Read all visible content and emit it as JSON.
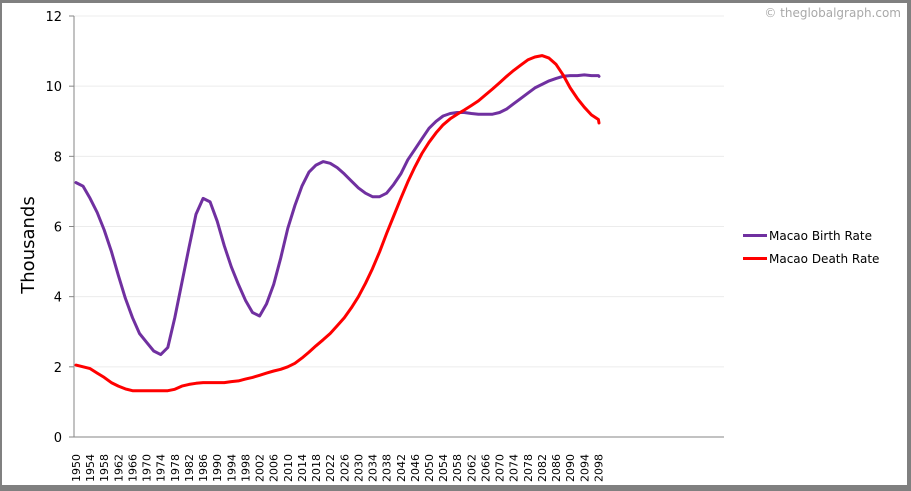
{
  "watermark": "© theglobalgraph.com",
  "colors": {
    "birth": "#7030a0",
    "death": "#ff0000",
    "grid": "#ececec",
    "axis": "#868686",
    "frame": "#808080"
  },
  "legend": {
    "items": [
      {
        "label": "Macao Birth Rate",
        "color": "#7030a0"
      },
      {
        "label": "Macao Death Rate",
        "color": "#ff0000"
      }
    ]
  },
  "chart_data": {
    "type": "line",
    "title": "",
    "xlabel": "",
    "ylabel": "Thousands",
    "ylim": [
      0,
      12
    ],
    "yticks": [
      0,
      2,
      4,
      6,
      8,
      10,
      12
    ],
    "grid": true,
    "legend_position": "right",
    "x_tick_labels": [
      "1950",
      "1954",
      "1958",
      "1962",
      "1966",
      "1970",
      "1974",
      "1978",
      "1982",
      "1986",
      "1990",
      "1994",
      "1998",
      "2002",
      "2006",
      "2010",
      "2014",
      "2018",
      "2022",
      "2026",
      "2030",
      "2034",
      "2038",
      "2042",
      "2046",
      "2050",
      "2054",
      "2058",
      "2062",
      "2066",
      "2070",
      "2074",
      "2078",
      "2082",
      "2086",
      "2090",
      "2094",
      "2098"
    ],
    "series": [
      {
        "name": "Macao Birth Rate",
        "color": "#7030a0",
        "points": [
          [
            1950,
            7.25
          ],
          [
            1952,
            7.15
          ],
          [
            1954,
            6.8
          ],
          [
            1956,
            6.4
          ],
          [
            1958,
            5.9
          ],
          [
            1960,
            5.3
          ],
          [
            1962,
            4.6
          ],
          [
            1964,
            3.95
          ],
          [
            1966,
            3.4
          ],
          [
            1968,
            2.95
          ],
          [
            1970,
            2.7
          ],
          [
            1972,
            2.45
          ],
          [
            1974,
            2.35
          ],
          [
            1976,
            2.55
          ],
          [
            1978,
            3.4
          ],
          [
            1980,
            4.4
          ],
          [
            1982,
            5.4
          ],
          [
            1984,
            6.35
          ],
          [
            1986,
            6.8
          ],
          [
            1988,
            6.7
          ],
          [
            1990,
            6.15
          ],
          [
            1992,
            5.45
          ],
          [
            1994,
            4.85
          ],
          [
            1996,
            4.35
          ],
          [
            1998,
            3.9
          ],
          [
            2000,
            3.55
          ],
          [
            2002,
            3.45
          ],
          [
            2004,
            3.8
          ],
          [
            2006,
            4.35
          ],
          [
            2008,
            5.1
          ],
          [
            2010,
            5.95
          ],
          [
            2012,
            6.6
          ],
          [
            2014,
            7.15
          ],
          [
            2016,
            7.55
          ],
          [
            2018,
            7.75
          ],
          [
            2020,
            7.85
          ],
          [
            2022,
            7.8
          ],
          [
            2024,
            7.68
          ],
          [
            2026,
            7.5
          ],
          [
            2028,
            7.3
          ],
          [
            2030,
            7.1
          ],
          [
            2032,
            6.95
          ],
          [
            2034,
            6.85
          ],
          [
            2036,
            6.85
          ],
          [
            2038,
            6.95
          ],
          [
            2040,
            7.2
          ],
          [
            2042,
            7.5
          ],
          [
            2044,
            7.9
          ],
          [
            2046,
            8.2
          ],
          [
            2048,
            8.5
          ],
          [
            2050,
            8.8
          ],
          [
            2052,
            9.0
          ],
          [
            2054,
            9.15
          ],
          [
            2056,
            9.22
          ],
          [
            2058,
            9.25
          ],
          [
            2060,
            9.25
          ],
          [
            2062,
            9.22
          ],
          [
            2064,
            9.2
          ],
          [
            2066,
            9.2
          ],
          [
            2068,
            9.2
          ],
          [
            2070,
            9.25
          ],
          [
            2072,
            9.35
          ],
          [
            2074,
            9.5
          ],
          [
            2076,
            9.65
          ],
          [
            2078,
            9.8
          ],
          [
            2080,
            9.95
          ],
          [
            2082,
            10.05
          ],
          [
            2084,
            10.15
          ],
          [
            2086,
            10.22
          ],
          [
            2088,
            10.28
          ],
          [
            2090,
            10.3
          ],
          [
            2092,
            10.3
          ],
          [
            2094,
            10.32
          ],
          [
            2096,
            10.3
          ],
          [
            2098,
            10.3
          ],
          [
            2100,
            10.28
          ]
        ]
      },
      {
        "name": "Macao Death Rate",
        "color": "#ff0000",
        "points": [
          [
            1950,
            2.05
          ],
          [
            1952,
            2.0
          ],
          [
            1954,
            1.95
          ],
          [
            1956,
            1.82
          ],
          [
            1958,
            1.7
          ],
          [
            1960,
            1.55
          ],
          [
            1962,
            1.45
          ],
          [
            1964,
            1.37
          ],
          [
            1966,
            1.32
          ],
          [
            1968,
            1.32
          ],
          [
            1970,
            1.32
          ],
          [
            1972,
            1.32
          ],
          [
            1974,
            1.32
          ],
          [
            1976,
            1.32
          ],
          [
            1978,
            1.36
          ],
          [
            1980,
            1.45
          ],
          [
            1982,
            1.5
          ],
          [
            1984,
            1.53
          ],
          [
            1986,
            1.55
          ],
          [
            1988,
            1.55
          ],
          [
            1990,
            1.55
          ],
          [
            1992,
            1.55
          ],
          [
            1994,
            1.58
          ],
          [
            1996,
            1.6
          ],
          [
            1998,
            1.65
          ],
          [
            2000,
            1.7
          ],
          [
            2002,
            1.76
          ],
          [
            2004,
            1.82
          ],
          [
            2006,
            1.88
          ],
          [
            2008,
            1.93
          ],
          [
            2010,
            2.0
          ],
          [
            2012,
            2.1
          ],
          [
            2014,
            2.25
          ],
          [
            2016,
            2.42
          ],
          [
            2018,
            2.6
          ],
          [
            2020,
            2.77
          ],
          [
            2022,
            2.95
          ],
          [
            2024,
            3.17
          ],
          [
            2026,
            3.4
          ],
          [
            2028,
            3.68
          ],
          [
            2030,
            4.0
          ],
          [
            2032,
            4.38
          ],
          [
            2034,
            4.8
          ],
          [
            2036,
            5.28
          ],
          [
            2038,
            5.8
          ],
          [
            2040,
            6.3
          ],
          [
            2042,
            6.8
          ],
          [
            2044,
            7.27
          ],
          [
            2046,
            7.7
          ],
          [
            2048,
            8.08
          ],
          [
            2050,
            8.4
          ],
          [
            2052,
            8.67
          ],
          [
            2054,
            8.9
          ],
          [
            2056,
            9.07
          ],
          [
            2058,
            9.2
          ],
          [
            2060,
            9.32
          ],
          [
            2062,
            9.45
          ],
          [
            2064,
            9.58
          ],
          [
            2066,
            9.75
          ],
          [
            2068,
            9.92
          ],
          [
            2070,
            10.1
          ],
          [
            2072,
            10.28
          ],
          [
            2074,
            10.45
          ],
          [
            2076,
            10.6
          ],
          [
            2078,
            10.75
          ],
          [
            2080,
            10.83
          ],
          [
            2082,
            10.87
          ],
          [
            2084,
            10.8
          ],
          [
            2086,
            10.62
          ],
          [
            2088,
            10.32
          ],
          [
            2090,
            9.95
          ],
          [
            2092,
            9.65
          ],
          [
            2094,
            9.4
          ],
          [
            2096,
            9.18
          ],
          [
            2098,
            9.05
          ],
          [
            2100,
            8.95
          ]
        ]
      }
    ]
  }
}
